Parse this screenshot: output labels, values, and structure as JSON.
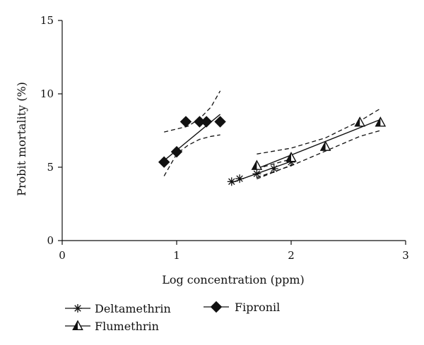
{
  "chart_data": {
    "type": "scatter",
    "title": "",
    "xlabel": "Log concentration (ppm)",
    "ylabel": "Probit mortality (%)",
    "xlim": [
      0,
      3
    ],
    "ylim": [
      0,
      15
    ],
    "x_ticks": [
      0,
      1,
      2,
      3
    ],
    "y_ticks": [
      0,
      5,
      10,
      15
    ],
    "x_tick_labels": [
      "0",
      "1",
      "2",
      "3"
    ],
    "y_tick_labels": [
      "0",
      "5",
      "10",
      "15"
    ],
    "grid": false,
    "legend_position": "bottom-left",
    "series": [
      {
        "name": "Deltamethrin",
        "marker": "asterisk-icon",
        "color": "#111111",
        "points": [
          {
            "x": 1.48,
            "y": 4.02
          },
          {
            "x": 1.55,
            "y": 4.22
          },
          {
            "x": 1.7,
            "y": 4.55
          },
          {
            "x": 1.85,
            "y": 4.9
          },
          {
            "x": 2.0,
            "y": 5.35
          }
        ],
        "fit": {
          "x": [
            1.48,
            2.02
          ],
          "y": [
            3.95,
            5.45
          ]
        },
        "ci_upper": {
          "x": [
            1.7,
            2.02
          ],
          "y": [
            4.9,
            5.6
          ]
        },
        "ci_lower": {
          "x": [
            1.7,
            2.02
          ],
          "y": [
            4.2,
            5.2
          ]
        }
      },
      {
        "name": "Flumethrin",
        "marker": "open-triangle-icon",
        "color": "#111111",
        "points": [
          {
            "x": 1.7,
            "y": 5.1
          },
          {
            "x": 2.0,
            "y": 5.65
          },
          {
            "x": 2.3,
            "y": 6.4
          },
          {
            "x": 2.6,
            "y": 8.05
          },
          {
            "x": 2.78,
            "y": 8.05
          }
        ],
        "fit": {
          "x": [
            1.7,
            2.78
          ],
          "y": [
            4.9,
            8.25
          ]
        },
        "ci_upper": {
          "x": [
            1.7,
            2.0,
            2.3,
            2.6,
            2.78
          ],
          "y": [
            5.9,
            6.3,
            7.0,
            8.15,
            9.0
          ]
        },
        "ci_lower": {
          "x": [
            1.7,
            2.0,
            2.3,
            2.6,
            2.78
          ],
          "y": [
            4.3,
            5.1,
            6.1,
            7.1,
            7.5
          ]
        }
      },
      {
        "name": "Fipronil",
        "marker": "filled-diamond-icon",
        "color": "#111111",
        "points": [
          {
            "x": 0.89,
            "y": 5.35
          },
          {
            "x": 1.0,
            "y": 6.05
          },
          {
            "x": 1.08,
            "y": 8.1
          },
          {
            "x": 1.2,
            "y": 8.1
          },
          {
            "x": 1.26,
            "y": 8.1
          },
          {
            "x": 1.38,
            "y": 8.1
          }
        ],
        "fit": {
          "x": [
            0.89,
            1.38
          ],
          "y": [
            5.45,
            8.6
          ]
        },
        "ci_upper": {
          "x": [
            0.89,
            1.0,
            1.1,
            1.2,
            1.3,
            1.38
          ],
          "y": [
            7.4,
            7.6,
            7.8,
            8.3,
            9.1,
            10.2
          ]
        },
        "ci_lower": {
          "x": [
            0.89,
            1.0,
            1.1,
            1.2,
            1.3,
            1.38
          ],
          "y": [
            4.4,
            5.9,
            6.5,
            6.9,
            7.1,
            7.2
          ]
        }
      }
    ]
  }
}
